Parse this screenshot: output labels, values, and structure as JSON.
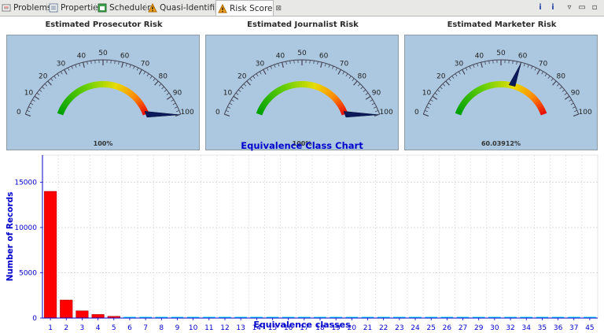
{
  "tabs": [
    {
      "label": "Problems",
      "icon": "problems-icon"
    },
    {
      "label": "Properties",
      "icon": "properties-icon"
    },
    {
      "label": "Scheduler",
      "icon": "scheduler-icon"
    },
    {
      "label": "Quasi-Identifiers",
      "icon": "warning-icon"
    },
    {
      "label": "Risk Score",
      "icon": "warning-icon",
      "active": true,
      "close": "⊠"
    }
  ],
  "view_buttons": {
    "info1": "i",
    "info2": "i",
    "menu": "▿",
    "minimize": "▭",
    "maximize": "▫"
  },
  "gauges": [
    {
      "title": "Estimated Prosecutor Risk",
      "value": 100,
      "label": "100%"
    },
    {
      "title": "Estimated Journalist Risk",
      "value": 100,
      "label": "100%"
    },
    {
      "title": "Estimated Marketer Risk",
      "value": 60.03912,
      "label": "60.03912%"
    }
  ],
  "gauge_ticks": [
    "0",
    "10",
    "20",
    "30",
    "40",
    "50",
    "60",
    "70",
    "80",
    "90",
    "100"
  ],
  "chart_data": {
    "type": "bar",
    "title": "Equivalence Class Chart",
    "xlabel": "Equivalence classes",
    "ylabel": "Number of Records",
    "categories": [
      "1",
      "2",
      "3",
      "4",
      "5",
      "6",
      "7",
      "8",
      "9",
      "10",
      "11",
      "12",
      "13",
      "14",
      "15",
      "16",
      "17",
      "18",
      "19",
      "20",
      "21",
      "22",
      "23",
      "24",
      "25",
      "26",
      "27",
      "29",
      "30",
      "32",
      "34",
      "35",
      "36",
      "37",
      "45"
    ],
    "values": [
      14000,
      2000,
      800,
      400,
      200,
      100,
      80,
      60,
      40,
      30,
      30,
      25,
      25,
      20,
      20,
      20,
      20,
      15,
      15,
      15,
      15,
      15,
      15,
      15,
      10,
      10,
      10,
      10,
      10,
      10,
      10,
      10,
      10,
      10,
      10
    ],
    "yticks": [
      "0",
      "5000",
      "10000",
      "15000"
    ],
    "ylim": [
      0,
      18000
    ],
    "grid": true,
    "colors": {
      "major": "#ff0000",
      "minor": "#00d4ff",
      "axis": "#0000cc"
    }
  }
}
